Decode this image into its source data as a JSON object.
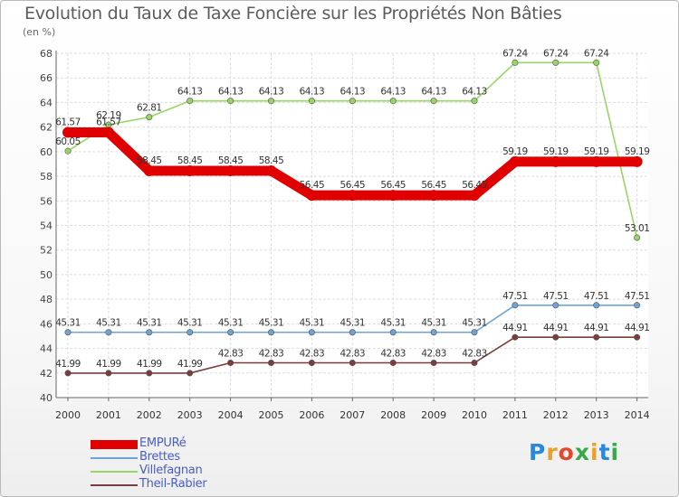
{
  "title": "Evolution du Taux de Taxe Foncière sur les Propriétés Non Bâties",
  "subtitle": "(en %)",
  "logo": {
    "text": "Proxiti",
    "letter_colors": [
      "#2d86d6",
      "#e8a22c",
      "#e04a2c",
      "#3aa84a",
      "#e8a22c",
      "#2d86d6",
      "#3aa84a"
    ]
  },
  "chart_data": {
    "type": "line",
    "title": "Evolution du Taux de Taxe Foncière sur les Propriétés Non Bâties",
    "ylabel": "(en %)",
    "xlabel": "",
    "x": [
      "2000",
      "2001",
      "2002",
      "2003",
      "2004",
      "2005",
      "2006",
      "2007",
      "2008",
      "2009",
      "2010",
      "2011",
      "2012",
      "2013",
      "2014"
    ],
    "ylim": [
      40,
      68
    ],
    "yticks": [
      40,
      42,
      44,
      46,
      48,
      50,
      52,
      54,
      56,
      58,
      60,
      62,
      64,
      66,
      68
    ],
    "grid": true,
    "legend_position": "bottom-left",
    "series": [
      {
        "name": "EMPURé",
        "color": "#e00000",
        "bold": true,
        "values": [
          61.57,
          61.57,
          58.45,
          58.45,
          58.45,
          58.45,
          56.45,
          56.45,
          56.45,
          56.45,
          56.45,
          59.19,
          59.19,
          59.19,
          59.19
        ]
      },
      {
        "name": "Brettes",
        "color": "#6da3d6",
        "bold": false,
        "values": [
          45.31,
          45.31,
          45.31,
          45.31,
          45.31,
          45.31,
          45.31,
          45.31,
          45.31,
          45.31,
          45.31,
          47.51,
          47.51,
          47.51,
          47.51
        ]
      },
      {
        "name": "Villefagnan",
        "color": "#99d566",
        "bold": false,
        "values": [
          60.05,
          62.19,
          62.81,
          64.13,
          64.13,
          64.13,
          64.13,
          64.13,
          64.13,
          64.13,
          64.13,
          67.24,
          67.24,
          67.24,
          53.01
        ]
      },
      {
        "name": "Theil-Rabier",
        "color": "#7a3c3c",
        "bold": false,
        "values": [
          41.99,
          41.99,
          41.99,
          41.99,
          42.83,
          42.83,
          42.83,
          42.83,
          42.83,
          42.83,
          42.83,
          44.91,
          44.91,
          44.91,
          44.91
        ]
      }
    ]
  }
}
